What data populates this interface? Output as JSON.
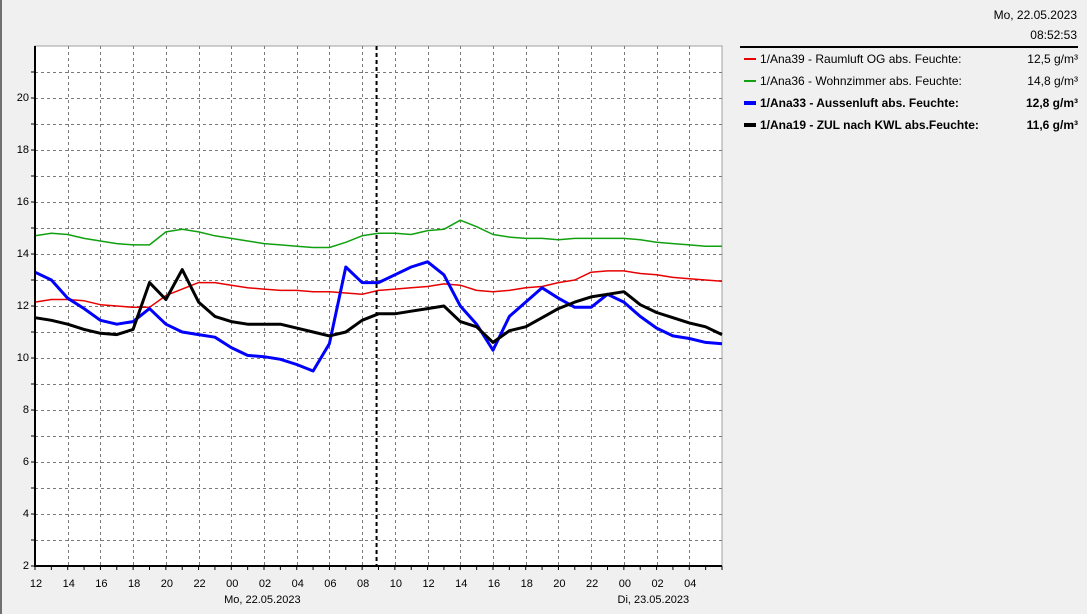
{
  "header": {
    "date": "Mo, 22.05.2023",
    "time": "08:52:53"
  },
  "chart_data": {
    "type": "line",
    "grid": true,
    "legend_position": "right",
    "xlim": [
      "21.05.2023 12:00",
      "23.05.2023 06:00"
    ],
    "ylim": [
      2,
      22
    ],
    "yticks": [
      "2",
      "4",
      "6",
      "8",
      "10",
      "12",
      "14",
      "16",
      "18",
      "20"
    ],
    "xticks": [
      "12",
      "14",
      "16",
      "18",
      "20",
      "22",
      "00",
      "02",
      "04",
      "06",
      "08",
      "10",
      "12",
      "14",
      "16",
      "18",
      "20",
      "22",
      "00",
      "02",
      "04"
    ],
    "date_labels": [
      "Mo, 22.05.2023",
      "Di, 23.05.2023"
    ],
    "x": [
      "21.05.2023 12:00",
      "21.05.2023 13:00",
      "21.05.2023 14:00",
      "21.05.2023 15:00",
      "21.05.2023 16:00",
      "21.05.2023 17:00",
      "21.05.2023 18:00",
      "21.05.2023 19:00",
      "21.05.2023 20:00",
      "21.05.2023 21:00",
      "21.05.2023 22:00",
      "21.05.2023 23:00",
      "22.05.2023 00:00",
      "22.05.2023 01:00",
      "22.05.2023 02:00",
      "22.05.2023 03:00",
      "22.05.2023 04:00",
      "22.05.2023 05:00",
      "22.05.2023 06:00",
      "22.05.2023 07:00",
      "22.05.2023 08:00",
      "22.05.2023 09:00",
      "22.05.2023 10:00",
      "22.05.2023 11:00",
      "22.05.2023 12:00",
      "22.05.2023 13:00",
      "22.05.2023 14:00",
      "22.05.2023 15:00",
      "22.05.2023 16:00",
      "22.05.2023 17:00",
      "22.05.2023 18:00",
      "22.05.2023 19:00",
      "22.05.2023 20:00",
      "22.05.2023 21:00",
      "22.05.2023 22:00",
      "22.05.2023 23:00",
      "23.05.2023 00:00",
      "23.05.2023 01:00",
      "23.05.2023 02:00",
      "23.05.2023 03:00",
      "23.05.2023 04:00",
      "23.05.2023 05:00",
      "23.05.2023 06:00"
    ],
    "series": [
      {
        "name": "1/Ana39 - Raumluft OG abs. Feuchte:",
        "current": "12,5 g/m³",
        "color": "#e80000",
        "values": [
          12.15,
          12.25,
          12.25,
          12.2,
          12.05,
          12.0,
          11.95,
          11.95,
          12.4,
          12.65,
          12.9,
          12.9,
          12.8,
          12.7,
          12.65,
          12.6,
          12.6,
          12.55,
          12.55,
          12.5,
          12.45,
          12.6,
          12.65,
          12.7,
          12.75,
          12.85,
          12.8,
          12.6,
          12.55,
          12.6,
          12.7,
          12.75,
          12.9,
          13.0,
          13.3,
          13.35,
          13.35,
          13.25,
          13.2,
          13.1,
          13.05,
          13.0,
          12.95
        ]
      },
      {
        "name": "1/Ana36 - Wohnzimmer abs. Feuchte:",
        "current": "14,8 g/m³",
        "color": "#10a010",
        "values": [
          14.7,
          14.8,
          14.75,
          14.6,
          14.5,
          14.4,
          14.35,
          14.35,
          14.85,
          14.95,
          14.85,
          14.7,
          14.6,
          14.5,
          14.4,
          14.35,
          14.3,
          14.25,
          14.25,
          14.45,
          14.7,
          14.8,
          14.8,
          14.75,
          14.9,
          14.95,
          15.3,
          15.05,
          14.75,
          14.65,
          14.6,
          14.6,
          14.55,
          14.6,
          14.6,
          14.6,
          14.6,
          14.55,
          14.45,
          14.4,
          14.35,
          14.3,
          14.3
        ]
      },
      {
        "name": "1/Ana33 - Aussenluft abs. Feuchte:",
        "current": "12,8 g/m³",
        "color": "#0000ff",
        "values": [
          13.3,
          13.0,
          12.3,
          11.9,
          11.45,
          11.3,
          11.4,
          11.9,
          11.3,
          11.0,
          10.9,
          10.8,
          10.4,
          10.1,
          10.05,
          9.95,
          9.75,
          9.5,
          10.55,
          13.5,
          12.9,
          12.9,
          13.2,
          13.5,
          13.7,
          13.2,
          12.0,
          11.3,
          10.3,
          11.6,
          12.15,
          12.7,
          12.3,
          11.95,
          11.95,
          12.45,
          12.15,
          11.6,
          11.15,
          10.85,
          10.75,
          10.6,
          10.55
        ]
      },
      {
        "name": "1/Ana19 - ZUL nach KWL abs.Feuchte:",
        "current": "11,6 g/m³",
        "color": "#000000",
        "values": [
          11.55,
          11.45,
          11.3,
          11.1,
          10.95,
          10.9,
          11.1,
          12.9,
          12.25,
          13.4,
          12.15,
          11.6,
          11.4,
          11.3,
          11.3,
          11.3,
          11.15,
          11.0,
          10.85,
          11.0,
          11.45,
          11.7,
          11.7,
          11.8,
          11.9,
          12.0,
          11.4,
          11.2,
          10.6,
          11.05,
          11.2,
          11.55,
          11.9,
          12.15,
          12.35,
          12.45,
          12.55,
          12.05,
          11.75,
          11.55,
          11.35,
          11.2,
          10.9
        ]
      }
    ]
  }
}
